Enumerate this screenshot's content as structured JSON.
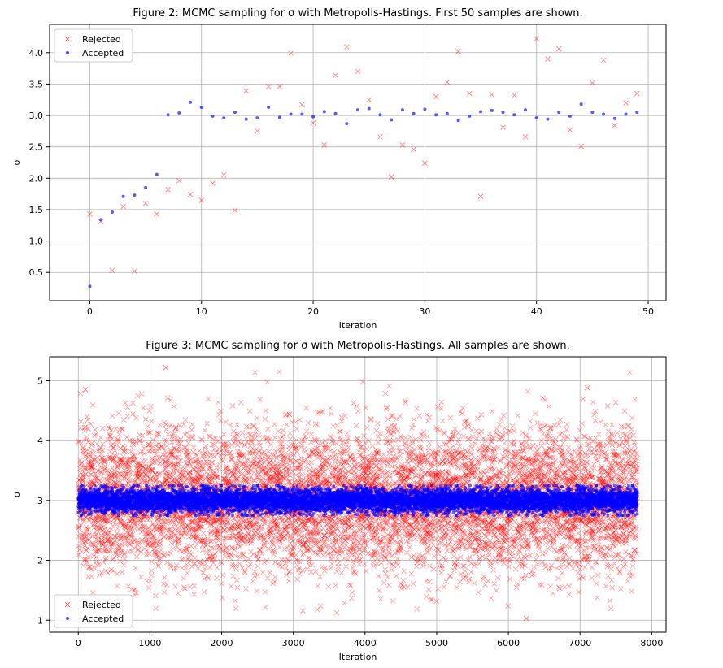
{
  "chart_data": [
    {
      "type": "scatter",
      "title": "Figure 2: MCMC sampling for σ with Metropolis-Hastings. First 50 samples are shown.",
      "xlabel": "Iteration",
      "ylabel": "σ",
      "xlim": [
        -3.6,
        51.6
      ],
      "ylim": [
        0.05,
        4.45
      ],
      "xticks": [
        0,
        10,
        20,
        30,
        40,
        50
      ],
      "yticks": [
        0.5,
        1.0,
        1.5,
        2.0,
        2.5,
        3.0,
        3.5,
        4.0
      ],
      "xtick_labels": [
        "0",
        "10",
        "20",
        "30",
        "40",
        "50"
      ],
      "ytick_labels": [
        "0.5",
        "1.0",
        "1.5",
        "2.0",
        "2.5",
        "3.0",
        "3.5",
        "4.0"
      ],
      "grid": true,
      "legend_position": "top-left",
      "series": [
        {
          "name": "Rejected",
          "marker": "x",
          "color": "#ff0000",
          "x": [
            0,
            1,
            2,
            3,
            4,
            5,
            6,
            7,
            8,
            9,
            10,
            11,
            12,
            13,
            14,
            15,
            16,
            17,
            18,
            19,
            20,
            21,
            22,
            23,
            24,
            25,
            26,
            27,
            28,
            29,
            30,
            31,
            32,
            33,
            34,
            35,
            36,
            37,
            38,
            39,
            40,
            41,
            42,
            43,
            44,
            45,
            46,
            47,
            48,
            49
          ],
          "y": [
            1.43,
            1.31,
            0.53,
            1.55,
            0.52,
            1.6,
            1.43,
            1.82,
            1.96,
            1.74,
            1.65,
            1.92,
            2.05,
            1.49,
            3.39,
            2.75,
            3.46,
            3.46,
            3.99,
            3.17,
            2.88,
            2.53,
            3.64,
            4.09,
            3.7,
            3.25,
            2.66,
            2.02,
            2.53,
            2.46,
            2.24,
            3.3,
            3.53,
            4.02,
            3.35,
            1.71,
            3.33,
            2.81,
            3.32,
            2.66,
            4.22,
            3.9,
            4.06,
            2.77,
            2.51,
            3.52,
            3.88,
            2.84,
            3.2,
            3.35
          ]
        },
        {
          "name": "Accepted",
          "marker": "o",
          "color": "#0000ff",
          "x": [
            0,
            1,
            2,
            3,
            4,
            5,
            6,
            7,
            8,
            9,
            10,
            11,
            12,
            13,
            14,
            15,
            16,
            17,
            18,
            19,
            20,
            21,
            22,
            23,
            24,
            25,
            26,
            27,
            28,
            29,
            30,
            31,
            32,
            33,
            34,
            35,
            36,
            37,
            38,
            39,
            40,
            41,
            42,
            43,
            44,
            45,
            46,
            47,
            48,
            49
          ],
          "y": [
            0.28,
            1.34,
            1.46,
            1.71,
            1.73,
            1.85,
            2.06,
            3.01,
            3.04,
            3.21,
            3.13,
            2.99,
            2.96,
            3.05,
            2.94,
            2.96,
            3.13,
            2.97,
            3.02,
            3.02,
            2.98,
            3.06,
            3.03,
            2.87,
            3.09,
            3.11,
            3.01,
            2.93,
            3.09,
            3.03,
            3.1,
            3.01,
            3.03,
            2.92,
            2.99,
            3.06,
            3.08,
            3.05,
            3.01,
            3.09,
            2.96,
            2.94,
            3.05,
            2.99,
            3.18,
            3.05,
            3.02,
            2.95,
            3.02,
            3.05
          ]
        }
      ]
    },
    {
      "type": "scatter",
      "title": "Figure 3: MCMC sampling for σ with Metropolis-Hastings. All samples are shown.",
      "xlabel": "Iteration",
      "ylabel": "σ",
      "xlim": [
        -400,
        8200
      ],
      "ylim": [
        0.8,
        5.4
      ],
      "xticks": [
        0,
        1000,
        2000,
        3000,
        4000,
        5000,
        6000,
        7000,
        8000
      ],
      "yticks": [
        1,
        2,
        3,
        4,
        5
      ],
      "xtick_labels": [
        "0",
        "1000",
        "2000",
        "3000",
        "4000",
        "5000",
        "6000",
        "7000",
        "8000"
      ],
      "ytick_labels": [
        "1",
        "2",
        "3",
        "4",
        "5"
      ],
      "grid": true,
      "legend_position": "bottom-left",
      "sample_count": 7800,
      "series": [
        {
          "name": "Rejected",
          "marker": "x",
          "color": "#ff0000",
          "x_range": [
            0,
            7800
          ],
          "distribution": "normal",
          "mean": 3.0,
          "std": 0.6,
          "y_range": [
            1.02,
            5.22
          ],
          "notable_points": [
            [
              1220,
              5.22
            ],
            [
              6250,
              1.03
            ],
            [
              7100,
              4.88
            ],
            [
              100,
              4.85
            ]
          ]
        },
        {
          "name": "Accepted",
          "marker": "o",
          "color": "#0000ff",
          "x_range": [
            0,
            7800
          ],
          "distribution": "normal",
          "mean": 3.0,
          "std": 0.1,
          "y_range": [
            2.75,
            3.25
          ]
        }
      ]
    }
  ]
}
